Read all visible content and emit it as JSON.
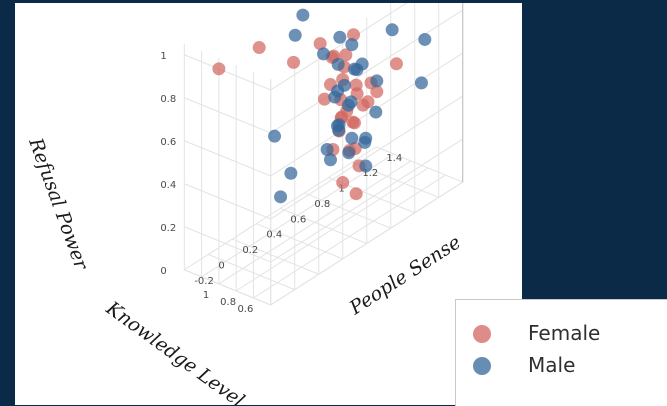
{
  "chart_data": {
    "type": "scatter",
    "axes": {
      "x": {
        "label": "People Sense",
        "ticks": [
          "-0.2",
          "0",
          "0.2",
          "0.4",
          "0.6",
          "0.8",
          "1",
          "1.2",
          "1.4"
        ]
      },
      "y": {
        "label": "Knowledge Level",
        "ticks": [
          "0.6",
          "0.8",
          "1"
        ]
      },
      "z": {
        "label": "Refusal Power",
        "ticks": [
          "0",
          "0.2",
          "0.4",
          "0.6",
          "0.8",
          "1"
        ]
      }
    },
    "grid": true,
    "legend_position": "bottom-right",
    "series": [
      {
        "name": "Female",
        "color": "#d2665f",
        "points": [
          {
            "x": -0.2,
            "y": 1.0,
            "z": 1.0
          },
          {
            "x": 0.1,
            "y": 0.95,
            "z": 1.0
          },
          {
            "x": 0.35,
            "y": 0.9,
            "z": 0.85
          },
          {
            "x": 0.6,
            "y": 0.8,
            "z": 0.8
          },
          {
            "x": 0.65,
            "y": 0.85,
            "z": 0.78
          },
          {
            "x": 0.55,
            "y": 0.75,
            "z": 0.7
          },
          {
            "x": 0.7,
            "y": 0.8,
            "z": 0.72
          },
          {
            "x": 0.6,
            "y": 0.7,
            "z": 0.62
          },
          {
            "x": 0.5,
            "y": 0.75,
            "z": 0.65
          },
          {
            "x": 0.75,
            "y": 0.85,
            "z": 0.75
          },
          {
            "x": 0.65,
            "y": 0.7,
            "z": 0.55
          },
          {
            "x": 0.8,
            "y": 0.8,
            "z": 0.6
          },
          {
            "x": 0.55,
            "y": 0.65,
            "z": 0.5
          },
          {
            "x": 0.7,
            "y": 0.7,
            "z": 0.48
          },
          {
            "x": 0.6,
            "y": 0.6,
            "z": 0.4
          },
          {
            "x": 0.75,
            "y": 0.75,
            "z": 0.45
          },
          {
            "x": 0.68,
            "y": 0.6,
            "z": 0.3
          },
          {
            "x": 0.72,
            "y": 0.7,
            "z": 0.35
          },
          {
            "x": 0.62,
            "y": 0.55,
            "z": 0.2
          },
          {
            "x": 0.58,
            "y": 0.65,
            "z": 0.25
          },
          {
            "x": 0.9,
            "y": 0.7,
            "z": 0.55
          },
          {
            "x": 0.85,
            "y": 0.9,
            "z": 0.8
          },
          {
            "x": 0.5,
            "y": 0.55,
            "z": 0.6
          },
          {
            "x": 0.78,
            "y": 0.6,
            "z": 0.65
          },
          {
            "x": 0.66,
            "y": 0.78,
            "z": 0.5
          },
          {
            "x": 0.7,
            "y": 0.65,
            "z": 0.62
          },
          {
            "x": 0.63,
            "y": 0.72,
            "z": 0.7
          },
          {
            "x": 0.8,
            "y": 0.72,
            "z": 0.52
          },
          {
            "x": 0.52,
            "y": 0.68,
            "z": 0.42
          },
          {
            "x": 0.74,
            "y": 0.58,
            "z": 0.58
          },
          {
            "x": 1.1,
            "y": 0.75,
            "z": 0.6
          },
          {
            "x": 0.5,
            "y": 0.8,
            "z": 0.9
          }
        ]
      },
      {
        "name": "Male",
        "color": "#35679a",
        "points": [
          {
            "x": 0.5,
            "y": 1.0,
            "z": 1.0
          },
          {
            "x": 0.4,
            "y": 0.95,
            "z": 0.95
          },
          {
            "x": 0.7,
            "y": 0.85,
            "z": 0.85
          },
          {
            "x": 0.65,
            "y": 0.8,
            "z": 0.75
          },
          {
            "x": 0.6,
            "y": 0.9,
            "z": 0.8
          },
          {
            "x": 0.75,
            "y": 0.75,
            "z": 0.7
          },
          {
            "x": 0.8,
            "y": 0.85,
            "z": 0.78
          },
          {
            "x": 0.55,
            "y": 0.7,
            "z": 0.65
          },
          {
            "x": 0.65,
            "y": 0.65,
            "z": 0.6
          },
          {
            "x": 0.7,
            "y": 0.75,
            "z": 0.55
          },
          {
            "x": 0.85,
            "y": 0.8,
            "z": 0.68
          },
          {
            "x": 0.6,
            "y": 0.72,
            "z": 0.5
          },
          {
            "x": 0.9,
            "y": 0.7,
            "z": 0.6
          },
          {
            "x": 0.62,
            "y": 0.6,
            "z": 0.45
          },
          {
            "x": 0.75,
            "y": 0.62,
            "z": 0.4
          },
          {
            "x": 0.8,
            "y": 0.7,
            "z": 0.35
          },
          {
            "x": 0.7,
            "y": 0.55,
            "z": 0.3
          },
          {
            "x": 0.5,
            "y": 0.6,
            "z": 0.55
          },
          {
            "x": 0.45,
            "y": 0.65,
            "z": 0.45
          },
          {
            "x": 0.55,
            "y": 0.75,
            "z": 0.35
          },
          {
            "x": 1.2,
            "y": 0.6,
            "z": 0.5
          },
          {
            "x": 1.1,
            "y": 0.8,
            "z": 0.75
          },
          {
            "x": 1.3,
            "y": 0.7,
            "z": 0.65
          },
          {
            "x": 0.3,
            "y": 1.05,
            "z": 0.5
          },
          {
            "x": 0.4,
            "y": 1.0,
            "z": 0.3
          },
          {
            "x": 0.35,
            "y": 1.05,
            "z": 0.2
          },
          {
            "x": 0.66,
            "y": 0.82,
            "z": 0.62
          },
          {
            "x": 0.72,
            "y": 0.68,
            "z": 0.72
          },
          {
            "x": 0.58,
            "y": 0.58,
            "z": 0.4
          },
          {
            "x": 0.82,
            "y": 0.6,
            "z": 0.5
          },
          {
            "x": 0.64,
            "y": 0.78,
            "z": 0.45
          },
          {
            "x": 0.76,
            "y": 0.88,
            "z": 0.6
          }
        ]
      }
    ]
  },
  "legend": {
    "items": [
      {
        "label": "Female",
        "color": "#d2665f"
      },
      {
        "label": "Male",
        "color": "#35679a"
      }
    ]
  }
}
